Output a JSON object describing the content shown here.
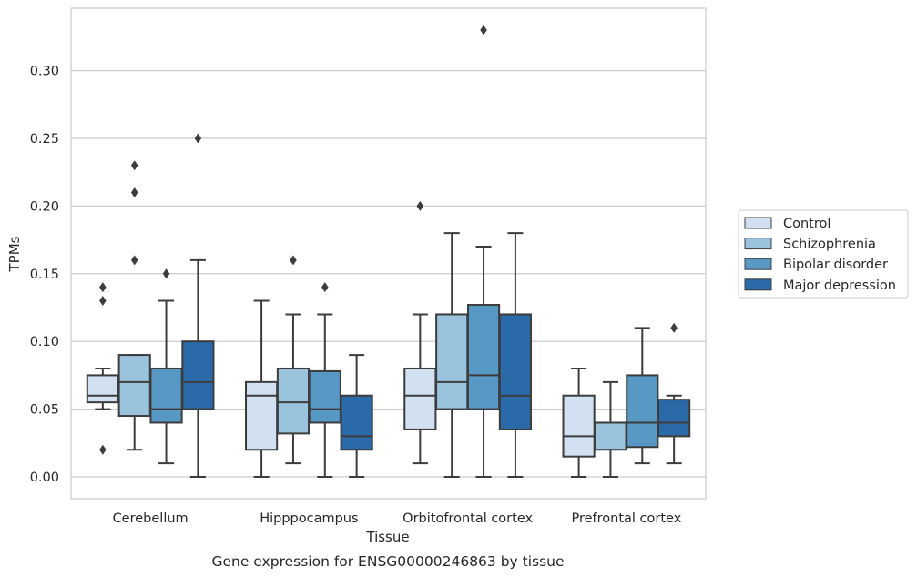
{
  "chart_data": {
    "type": "box",
    "title": "",
    "caption": "Gene expression for ENSG00000246863 by tissue",
    "xlabel": "Tissue",
    "ylabel": "TPMs",
    "ylim": [
      -0.016,
      0.346
    ],
    "yticks": [
      0.0,
      0.05,
      0.1,
      0.15,
      0.2,
      0.25,
      0.3
    ],
    "ytick_labels": [
      "0.00",
      "0.05",
      "0.10",
      "0.15",
      "0.20",
      "0.25",
      "0.30"
    ],
    "grid": "horizontal",
    "legend_position": "right",
    "categories": [
      "Cerebellum",
      "Hipppocampus",
      "Orbitofrontal cortex",
      "Prefrontal cortex"
    ],
    "series": [
      {
        "name": "Control",
        "color": "#d1e1f1",
        "boxes": [
          {
            "q1": 0.055,
            "median": 0.06,
            "q3": 0.075,
            "whisker_low": 0.05,
            "whisker_high": 0.08,
            "outliers": [
              0.02,
              0.13,
              0.14
            ]
          },
          {
            "q1": 0.02,
            "median": 0.06,
            "q3": 0.07,
            "whisker_low": 0.0,
            "whisker_high": 0.13,
            "outliers": []
          },
          {
            "q1": 0.035,
            "median": 0.06,
            "q3": 0.08,
            "whisker_low": 0.01,
            "whisker_high": 0.12,
            "outliers": [
              0.2
            ]
          },
          {
            "q1": 0.015,
            "median": 0.03,
            "q3": 0.06,
            "whisker_low": 0.0,
            "whisker_high": 0.08,
            "outliers": []
          }
        ]
      },
      {
        "name": "Schizophrenia",
        "color": "#9ac3de",
        "boxes": [
          {
            "q1": 0.045,
            "median": 0.07,
            "q3": 0.09,
            "whisker_low": 0.02,
            "whisker_high": 0.09,
            "outliers": [
              0.16,
              0.21,
              0.23
            ]
          },
          {
            "q1": 0.032,
            "median": 0.055,
            "q3": 0.08,
            "whisker_low": 0.01,
            "whisker_high": 0.12,
            "outliers": [
              0.16
            ]
          },
          {
            "q1": 0.05,
            "median": 0.07,
            "q3": 0.12,
            "whisker_low": 0.0,
            "whisker_high": 0.18,
            "outliers": []
          },
          {
            "q1": 0.02,
            "median": 0.04,
            "q3": 0.04,
            "whisker_low": 0.0,
            "whisker_high": 0.07,
            "outliers": []
          }
        ]
      },
      {
        "name": "Bipolar disorder",
        "color": "#5798c5",
        "boxes": [
          {
            "q1": 0.04,
            "median": 0.05,
            "q3": 0.08,
            "whisker_low": 0.01,
            "whisker_high": 0.13,
            "outliers": [
              0.15
            ]
          },
          {
            "q1": 0.04,
            "median": 0.05,
            "q3": 0.078,
            "whisker_low": 0.0,
            "whisker_high": 0.12,
            "outliers": [
              0.14
            ]
          },
          {
            "q1": 0.05,
            "median": 0.075,
            "q3": 0.127,
            "whisker_low": 0.0,
            "whisker_high": 0.17,
            "outliers": [
              0.33
            ]
          },
          {
            "q1": 0.022,
            "median": 0.04,
            "q3": 0.075,
            "whisker_low": 0.01,
            "whisker_high": 0.11,
            "outliers": []
          }
        ]
      },
      {
        "name": "Major depression",
        "color": "#2b6aa9",
        "boxes": [
          {
            "q1": 0.05,
            "median": 0.07,
            "q3": 0.1,
            "whisker_low": 0.0,
            "whisker_high": 0.16,
            "outliers": [
              0.25
            ]
          },
          {
            "q1": 0.02,
            "median": 0.03,
            "q3": 0.06,
            "whisker_low": 0.0,
            "whisker_high": 0.09,
            "outliers": []
          },
          {
            "q1": 0.035,
            "median": 0.06,
            "q3": 0.12,
            "whisker_low": 0.0,
            "whisker_high": 0.18,
            "outliers": []
          },
          {
            "q1": 0.03,
            "median": 0.04,
            "q3": 0.057,
            "whisker_low": 0.01,
            "whisker_high": 0.06,
            "outliers": [
              0.11
            ]
          }
        ]
      }
    ]
  }
}
